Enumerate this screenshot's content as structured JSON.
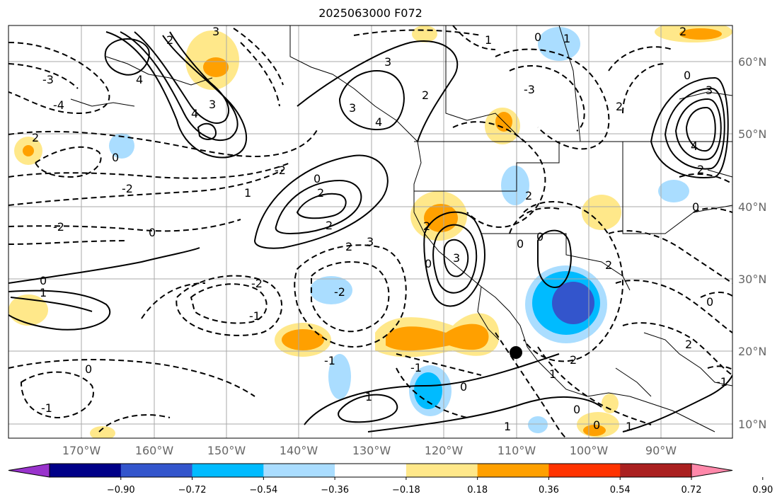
{
  "title": "2025063000 F072",
  "longitude_labels": [
    "170°W",
    "160°W",
    "150°W",
    "140°W",
    "130°W",
    "120°W",
    "110°W",
    "100°W",
    "90°W"
  ],
  "latitude_labels": [
    "60°N",
    "50°N",
    "40°N",
    "30°N",
    "20°N",
    "10°N"
  ],
  "colorbar": {
    "colors": [
      "#9933cc",
      "#000088",
      "#3355cc",
      "#00bbff",
      "#aaddff",
      "#ffffff",
      "#ffe88a",
      "#ffa000",
      "#ff3300",
      "#aa2020",
      "#ff88aa"
    ],
    "tick_labels": [
      "−0.90",
      "−0.72",
      "−0.54",
      "−0.36",
      "−0.18",
      "0.18",
      "0.36",
      "0.54",
      "0.72",
      "0.90"
    ]
  },
  "contour_labels": [
    "0",
    "1",
    "2",
    "3",
    "4",
    "-1",
    "-2",
    "-3",
    "-4"
  ],
  "colors": {
    "shade_blue_light": "#aaddff",
    "shade_blue": "#00bbff",
    "shade_blue_dark": "#3355cc",
    "shade_yellow": "#ffe88a",
    "shade_orange": "#ffa000",
    "line": "#000000",
    "grid": "#aaaaaa"
  }
}
